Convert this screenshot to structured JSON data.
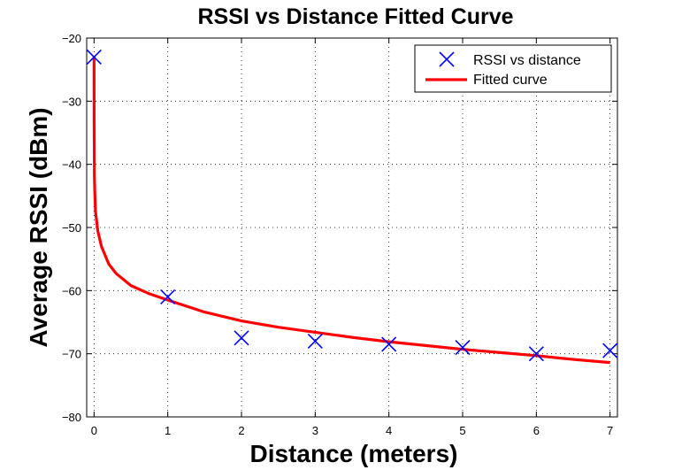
{
  "chart_data": {
    "type": "scatter",
    "title": "RSSI vs Distance Fitted Curve",
    "xlabel": "Distance (meters)",
    "ylabel": "Average RSSI (dBm)",
    "xlim": [
      -0.1,
      7.1
    ],
    "ylim": [
      -80,
      -20
    ],
    "xticks": [
      0,
      1,
      2,
      3,
      4,
      5,
      6,
      7
    ],
    "yticks": [
      -80,
      -70,
      -60,
      -50,
      -40,
      -30,
      -20
    ],
    "xtick_labels": [
      "0",
      "1",
      "2",
      "3",
      "4",
      "5",
      "6",
      "7"
    ],
    "ytick_labels": [
      "−80",
      "−70",
      "−60",
      "−50",
      "−40",
      "−30",
      "−20"
    ],
    "grid": true,
    "legend_position": "top-right",
    "series": [
      {
        "name": "RSSI vs distance",
        "kind": "scatter",
        "marker": "x",
        "color": "#0000ff",
        "x": [
          0,
          1,
          2,
          3,
          4,
          5,
          6,
          7
        ],
        "y": [
          -23,
          -61,
          -67.5,
          -68,
          -68.5,
          -69,
          -70,
          -69.5
        ]
      },
      {
        "name": "Fitted curve",
        "kind": "line",
        "color": "#ff0000",
        "x": [
          0,
          0.001,
          0.005,
          0.01,
          0.02,
          0.05,
          0.1,
          0.2,
          0.3,
          0.5,
          0.75,
          1,
          1.5,
          2,
          2.5,
          3,
          3.5,
          4,
          4.5,
          5,
          5.5,
          6,
          6.5,
          7
        ],
        "y": [
          -23,
          -33,
          -42,
          -44.5,
          -47.5,
          -50.5,
          -53,
          -55.8,
          -57.3,
          -59.2,
          -60.5,
          -61.5,
          -63.4,
          -64.8,
          -65.8,
          -66.6,
          -67.4,
          -68.1,
          -68.7,
          -69.3,
          -69.8,
          -70.3,
          -70.9,
          -71.4
        ]
      }
    ]
  }
}
